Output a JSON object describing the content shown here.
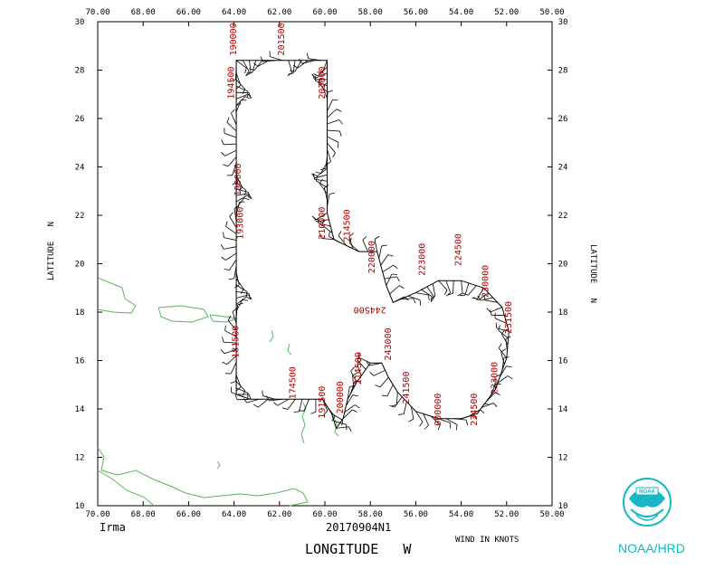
{
  "storm_name": "Irma",
  "flight_id": "20170904N1",
  "x_axis_title": "LONGITUDE   W",
  "y_axis_title_left": "LATITUDE   N",
  "y_axis_title_right": "LATITUDE   N",
  "wind_unit_label": "WIND IN KNOTS",
  "agency": "NOAA/HRD",
  "logo_text": "NOAA",
  "colors": {
    "track": "#000000",
    "coast": "#5bb55b",
    "time_label": "#b00000",
    "agency": "#17b7c4"
  },
  "chart_data": {
    "type": "map",
    "x_ticks": [
      "70.00",
      "68.00",
      "66.00",
      "64.00",
      "62.00",
      "60.00",
      "58.00",
      "56.00",
      "54.00",
      "52.00",
      "50.00"
    ],
    "y_ticks": [
      "10",
      "12",
      "14",
      "16",
      "18",
      "20",
      "22",
      "24",
      "26",
      "28",
      "30"
    ],
    "xlim": [
      70,
      50
    ],
    "ylim": [
      10,
      30
    ],
    "track": [
      [
        63.9,
        14.6
      ],
      [
        63.9,
        28.4
      ],
      [
        61.6,
        28.4
      ],
      [
        59.9,
        28.4
      ],
      [
        59.9,
        22.1
      ],
      [
        59.6,
        21.0
      ],
      [
        58.5,
        20.5
      ],
      [
        57.7,
        20.5
      ],
      [
        57.3,
        19.1
      ],
      [
        57.0,
        18.4
      ],
      [
        56.0,
        18.8
      ],
      [
        55.0,
        19.3
      ],
      [
        54.0,
        19.3
      ],
      [
        53.0,
        19.0
      ],
      [
        52.2,
        18.2
      ],
      [
        51.9,
        17.2
      ],
      [
        52.0,
        16.1
      ],
      [
        52.5,
        14.8
      ],
      [
        53.3,
        13.8
      ],
      [
        54.0,
        13.6
      ],
      [
        55.0,
        13.6
      ],
      [
        56.0,
        13.9
      ],
      [
        56.8,
        14.7
      ],
      [
        57.2,
        15.3
      ],
      [
        57.5,
        15.9
      ],
      [
        58.0,
        15.9
      ],
      [
        58.6,
        15.1
      ],
      [
        59.0,
        14.4
      ],
      [
        59.2,
        13.6
      ],
      [
        59.5,
        13.2
      ],
      [
        59.7,
        13.8
      ],
      [
        60.1,
        14.4
      ],
      [
        61.0,
        14.4
      ],
      [
        62.5,
        14.4
      ],
      [
        63.3,
        14.4
      ],
      [
        63.9,
        14.6
      ]
    ],
    "time_labels": [
      {
        "text": "201500",
        "lon": 61.8,
        "lat": 28.6,
        "rot": -90
      },
      {
        "text": "203000",
        "lon": 60.0,
        "lat": 26.8,
        "rot": -90
      },
      {
        "text": "194500",
        "lon": 64.0,
        "lat": 26.8,
        "rot": -90
      },
      {
        "text": "190000",
        "lon": 63.9,
        "lat": 28.6,
        "rot": -90
      },
      {
        "text": "210000",
        "lon": 60.0,
        "lat": 21.0,
        "rot": -90
      },
      {
        "text": "214500",
        "lon": 58.9,
        "lat": 20.9,
        "rot": -90
      },
      {
        "text": "220000",
        "lon": 57.8,
        "lat": 19.6,
        "rot": -90
      },
      {
        "text": "223000",
        "lon": 55.6,
        "lat": 19.5,
        "rot": -90
      },
      {
        "text": "224500",
        "lon": 54.0,
        "lat": 19.9,
        "rot": -90
      },
      {
        "text": "230000",
        "lon": 52.8,
        "lat": 18.6,
        "rot": -90
      },
      {
        "text": "231500",
        "lon": 51.8,
        "lat": 17.1,
        "rot": -90
      },
      {
        "text": "233000",
        "lon": 52.4,
        "lat": 14.6,
        "rot": -90
      },
      {
        "text": "234500",
        "lon": 53.3,
        "lat": 13.3,
        "rot": -90
      },
      {
        "text": "000000",
        "lon": 54.9,
        "lat": 13.3,
        "rot": -90
      },
      {
        "text": "241500",
        "lon": 56.3,
        "lat": 14.2,
        "rot": -90
      },
      {
        "text": "243000",
        "lon": 57.1,
        "lat": 16.0,
        "rot": -90
      },
      {
        "text": "244500",
        "lon": 57.3,
        "lat": 18.2,
        "rot": 180
      },
      {
        "text": "214500",
        "lon": 58.4,
        "lat": 15.0,
        "rot": -90
      },
      {
        "text": "200000",
        "lon": 59.2,
        "lat": 13.8,
        "rot": -90
      },
      {
        "text": "191500",
        "lon": 60.0,
        "lat": 13.6,
        "rot": -90
      },
      {
        "text": "174500",
        "lon": 61.3,
        "lat": 14.4,
        "rot": -90
      },
      {
        "text": "181500",
        "lon": 63.8,
        "lat": 16.1,
        "rot": -90
      },
      {
        "text": "193000",
        "lon": 63.6,
        "lat": 21.0,
        "rot": -90
      },
      {
        "text": "190000",
        "lon": 63.7,
        "lat": 22.8,
        "rot": -90
      }
    ]
  }
}
